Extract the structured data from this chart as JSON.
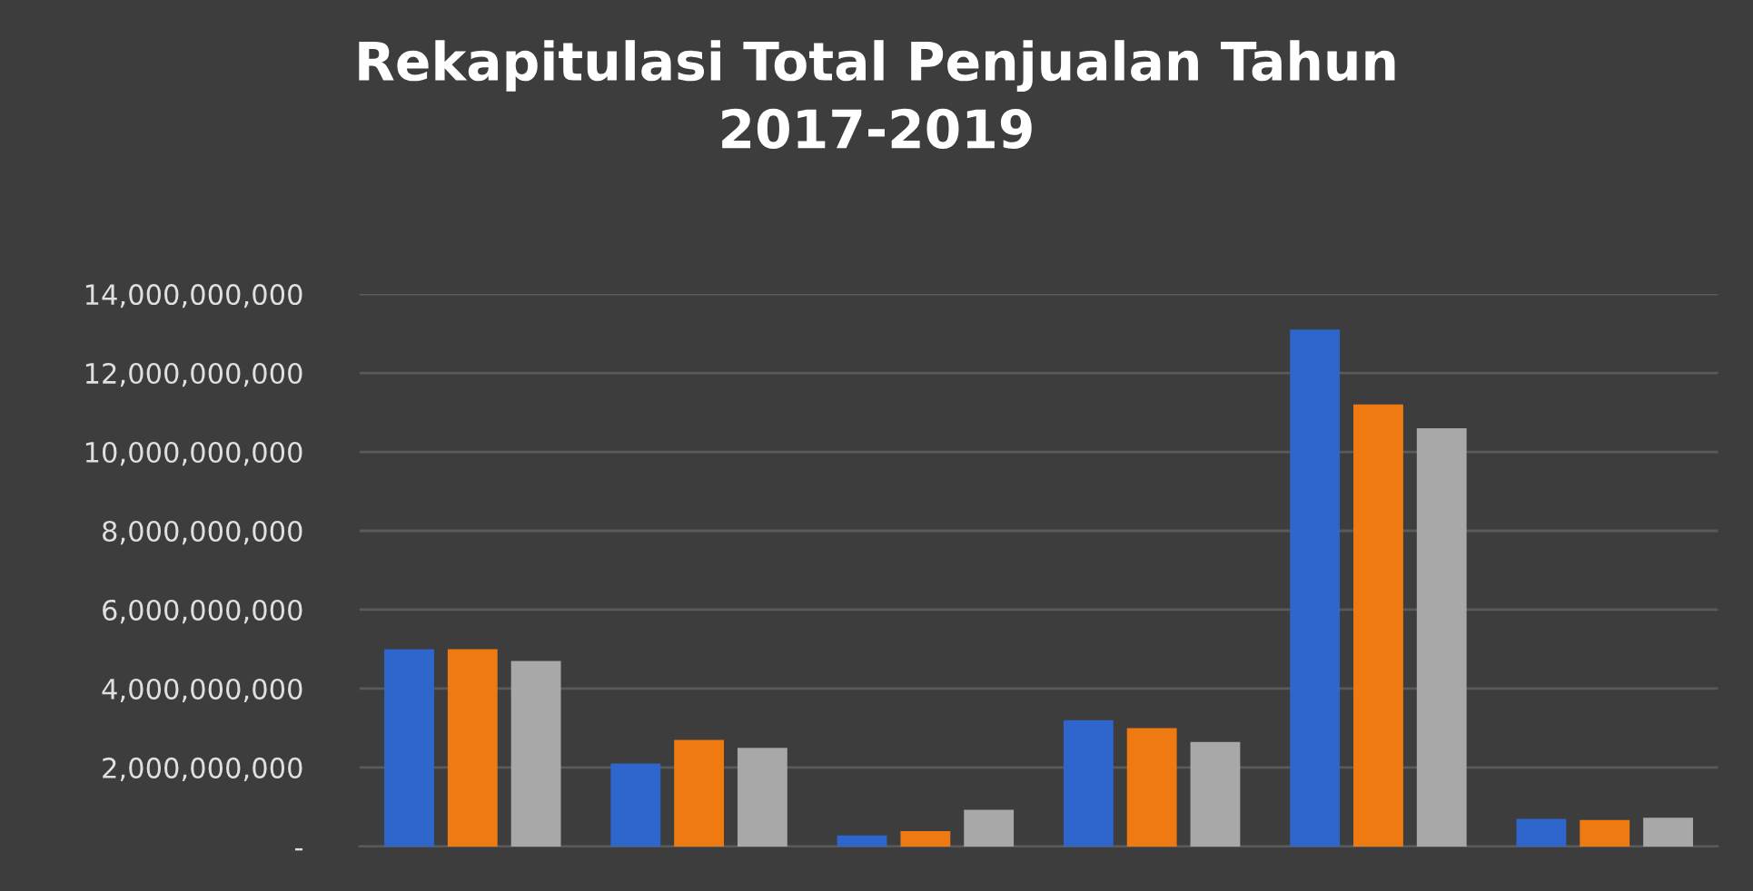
{
  "chart_data": {
    "type": "bar",
    "title": "Rekapitulasi Total Penjualan Tahun\n2017-2019",
    "categories": [
      null,
      null,
      null,
      null,
      null,
      null
    ],
    "series": [
      {
        "color": "#2f66cc",
        "values": [
          5000000000,
          2100000000,
          280000000,
          3200000000,
          13100000000,
          700000000
        ]
      },
      {
        "color": "#f07a12",
        "values": [
          5000000000,
          2700000000,
          390000000,
          3000000000,
          11200000000,
          670000000
        ]
      },
      {
        "color": "#a8a8a8",
        "values": [
          4700000000,
          2500000000,
          930000000,
          2650000000,
          10600000000,
          730000000
        ]
      }
    ],
    "ylim": [
      0,
      14000000000
    ],
    "yticks": [
      {
        "value": 0,
        "label": "-"
      },
      {
        "value": 2000000000,
        "label": "2,000,000,000"
      },
      {
        "value": 4000000000,
        "label": "4,000,000,000"
      },
      {
        "value": 6000000000,
        "label": "6,000,000,000"
      },
      {
        "value": 8000000000,
        "label": "8,000,000,000"
      },
      {
        "value": 10000000000,
        "label": "10,000,000,000"
      },
      {
        "value": 12000000000,
        "label": "12,000,000,000"
      },
      {
        "value": 14000000000,
        "label": "14,000,000,000"
      }
    ],
    "grid": "y"
  }
}
